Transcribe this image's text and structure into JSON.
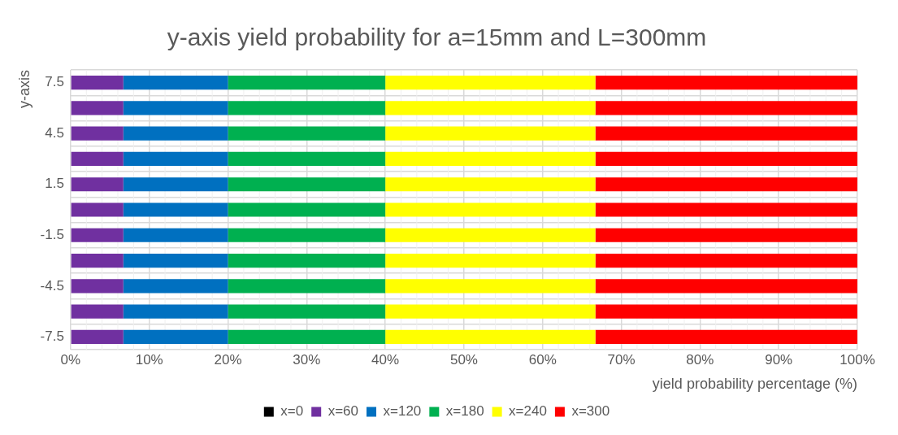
{
  "chart_data": {
    "type": "bar",
    "orientation": "horizontal",
    "stacked": true,
    "title": "y-axis yield probability for a=15mm and L=300mm",
    "xlabel": "yield probability percentage (%)",
    "ylabel": "y-axis",
    "categories": [
      "7.5",
      null,
      "4.5",
      null,
      "1.5",
      null,
      "-1.5",
      null,
      "-4.5",
      null,
      "-7.5"
    ],
    "series": [
      {
        "name": "x=0",
        "color": "#000000",
        "values": [
          0,
          0,
          0,
          0,
          0,
          0,
          0,
          0,
          0,
          0,
          0
        ]
      },
      {
        "name": "x=60",
        "color": "#7030a0",
        "values": [
          6.7,
          6.7,
          6.7,
          6.7,
          6.7,
          6.7,
          6.7,
          6.7,
          6.7,
          6.7,
          6.7
        ]
      },
      {
        "name": "x=120",
        "color": "#0070c0",
        "values": [
          13.3,
          13.3,
          13.3,
          13.3,
          13.3,
          13.3,
          13.3,
          13.3,
          13.3,
          13.3,
          13.3
        ]
      },
      {
        "name": "x=180",
        "color": "#00b050",
        "values": [
          20,
          20,
          20,
          20,
          20,
          20,
          20,
          20,
          20,
          20,
          20
        ]
      },
      {
        "name": "x=240",
        "color": "#ffff00",
        "values": [
          26.7,
          26.7,
          26.7,
          26.7,
          26.7,
          26.7,
          26.7,
          26.7,
          26.7,
          26.7,
          26.7
        ]
      },
      {
        "name": "x=300",
        "color": "#ff0000",
        "values": [
          33.3,
          33.3,
          33.3,
          33.3,
          33.3,
          33.3,
          33.3,
          33.3,
          33.3,
          33.3,
          33.3
        ]
      }
    ],
    "xlim": [
      0,
      100
    ],
    "xticks": [
      {
        "value": 0,
        "label": "0%"
      },
      {
        "value": 10,
        "label": "10%"
      },
      {
        "value": 20,
        "label": "20%"
      },
      {
        "value": 30,
        "label": "30%"
      },
      {
        "value": 40,
        "label": "40%"
      },
      {
        "value": 50,
        "label": "50%"
      },
      {
        "value": 60,
        "label": "60%"
      },
      {
        "value": 70,
        "label": "70%"
      },
      {
        "value": 80,
        "label": "80%"
      },
      {
        "value": 90,
        "label": "90%"
      },
      {
        "value": 100,
        "label": "100%"
      }
    ],
    "grid": true,
    "legend": "bottom"
  }
}
